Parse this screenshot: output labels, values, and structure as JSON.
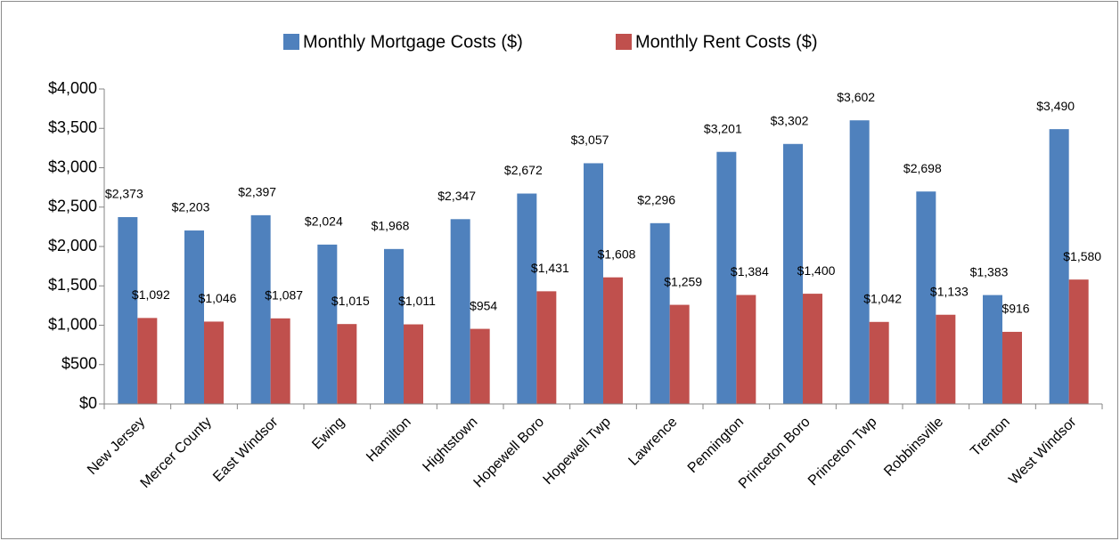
{
  "chart_data": {
    "type": "bar",
    "categories": [
      "New Jersey",
      "Mercer County",
      "East Windsor",
      "Ewing",
      "Hamilton",
      "Hightstown",
      "Hopewell Boro",
      "Hopewell Twp",
      "Lawrence",
      "Pennington",
      "Princeton Boro",
      "Princeton Twp",
      "Robbinsville",
      "Trenton",
      "West Windsor"
    ],
    "series": [
      {
        "name": "Monthly Mortgage Costs ($)",
        "color": "#4f81bd",
        "values": [
          2373,
          2203,
          2397,
          2024,
          1968,
          2347,
          2672,
          3057,
          2296,
          3201,
          3302,
          3602,
          2698,
          1383,
          3490
        ],
        "value_labels": [
          "$2,373",
          "$2,203",
          "$2,397",
          "$2,024",
          "$1,968",
          "$2,347",
          "$2,672",
          "$3,057",
          "$2,296",
          "$3,201",
          "$3,302",
          "$3,602",
          "$2,698",
          "$1,383",
          "$3,490"
        ]
      },
      {
        "name": "Monthly Rent Costs ($)",
        "color": "#c0504d",
        "values": [
          1092,
          1046,
          1087,
          1015,
          1011,
          954,
          1431,
          1608,
          1259,
          1384,
          1400,
          1042,
          1133,
          916,
          1580
        ],
        "value_labels": [
          "$1,092",
          "$1,046",
          "$1,087",
          "$1,015",
          "$1,011",
          "$954",
          "$1,431",
          "$1,608",
          "$1,259",
          "$1,384",
          "$1,400",
          "$1,042",
          "$1,133",
          "$916",
          "$1,580"
        ]
      }
    ],
    "ylim": [
      0,
      4000
    ],
    "yticks": [
      {
        "value": 0,
        "label": "$0"
      },
      {
        "value": 500,
        "label": "$500"
      },
      {
        "value": 1000,
        "label": "$1,000"
      },
      {
        "value": 1500,
        "label": "$1,500"
      },
      {
        "value": 2000,
        "label": "$2,000"
      },
      {
        "value": 2500,
        "label": "$2,500"
      },
      {
        "value": 3000,
        "label": "$3,000"
      },
      {
        "value": 3500,
        "label": "$3,500"
      },
      {
        "value": 4000,
        "label": "$4,000"
      }
    ],
    "legend": "top"
  }
}
